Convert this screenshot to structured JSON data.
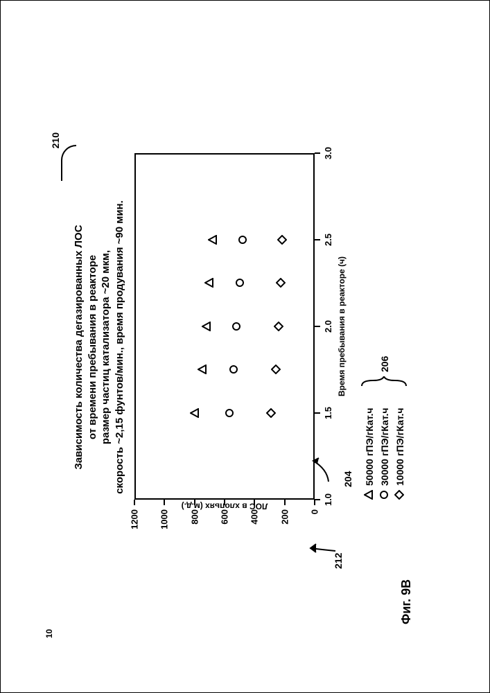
{
  "page_number_parent": "10",
  "callout_title": "210",
  "title_lines": [
    "Зависимость количества дегазированных ЛОС",
    "от времени пребывания в реакторе",
    "размер частиц катализатора ~20 мкм,",
    "скорость ~2,15 фунтов/мин., время продувания ~90 мин."
  ],
  "chart": {
    "type": "scatter",
    "xlim": [
      1.0,
      3.0
    ],
    "ylim": [
      0,
      1200
    ],
    "xtick_step": 0.5,
    "ytick_step": 200,
    "xticks": [
      "1.0",
      "1.5",
      "2.0",
      "2.5",
      "3.0"
    ],
    "yticks": [
      "0",
      "200",
      "400",
      "600",
      "800",
      "1000",
      "1200"
    ],
    "xlabel": "Время пребывания в реакторе (ч)",
    "ylabel": "ЛОС в хлопьях (м.д.)",
    "tick_fontsize": 13,
    "label_fontsize": 12,
    "title_fontsize": 15,
    "border_color": "#000000",
    "background_color": "#ffffff",
    "series": [
      {
        "name": "50000 гПЭ/гКат.ч",
        "marker": "triangle",
        "color": "#000000",
        "fill": "none",
        "points": [
          {
            "x": 1.5,
            "y": 800
          },
          {
            "x": 1.75,
            "y": 750
          },
          {
            "x": 2.0,
            "y": 720
          },
          {
            "x": 2.25,
            "y": 700
          },
          {
            "x": 2.5,
            "y": 680
          }
        ]
      },
      {
        "name": "30000 гПЭ/гКат.ч",
        "marker": "circle",
        "color": "#000000",
        "fill": "none",
        "points": [
          {
            "x": 1.5,
            "y": 570
          },
          {
            "x": 1.75,
            "y": 540
          },
          {
            "x": 2.0,
            "y": 520
          },
          {
            "x": 2.25,
            "y": 500
          },
          {
            "x": 2.5,
            "y": 480
          }
        ]
      },
      {
        "name": "10000 гПЭ/гКат.ч",
        "marker": "diamond",
        "color": "#000000",
        "fill": "none",
        "points": [
          {
            "x": 1.5,
            "y": 290
          },
          {
            "x": 1.75,
            "y": 260
          },
          {
            "x": 2.0,
            "y": 240
          },
          {
            "x": 2.25,
            "y": 225
          },
          {
            "x": 2.5,
            "y": 215
          }
        ]
      }
    ]
  },
  "callouts": {
    "origin_label": "204",
    "yaxis_label": "212",
    "legend_label": "206"
  },
  "figure_label": "Фиг. 9B"
}
